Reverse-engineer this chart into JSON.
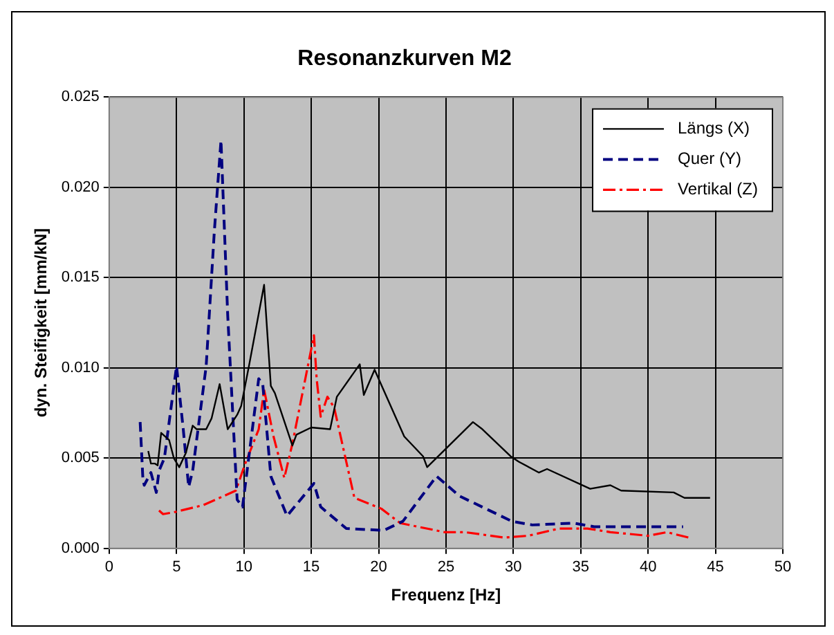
{
  "chart_data": {
    "type": "line",
    "title": "Resonanzkurven M2",
    "xlabel": "Frequenz [Hz]",
    "ylabel": "dyn. Steifigkeit [mm/kN]",
    "xlim": [
      0,
      50
    ],
    "xticks": [
      0,
      5,
      10,
      15,
      20,
      25,
      30,
      35,
      40,
      45,
      50
    ],
    "ylim": [
      0,
      0.025
    ],
    "yticks": [
      {
        "value": 0,
        "label": "0.000"
      },
      {
        "value": 0.005,
        "label": "0.005"
      },
      {
        "value": 0.01,
        "label": "0.010"
      },
      {
        "value": 0.015,
        "label": "0.015"
      },
      {
        "value": 0.02,
        "label": "0.020"
      },
      {
        "value": 0.025,
        "label": "0.025"
      }
    ],
    "grid": true,
    "legend": "top right",
    "marker": "none",
    "series": [
      {
        "name": "Längs (X)",
        "color": "#000000",
        "line_style": "solid",
        "x": [
          2.9,
          3.1,
          3.4,
          3.6,
          3.86,
          4.45,
          4.8,
          5.2,
          5.7,
          6.2,
          6.5,
          7.2,
          7.6,
          8.2,
          8.8,
          9.5,
          9.8,
          10.4,
          11.5,
          12.0,
          12.3,
          13.6,
          13.9,
          15.0,
          16.4,
          16.9,
          18.6,
          18.9,
          19.7,
          21.9,
          23.3,
          23.6,
          27.0,
          27.7,
          29.8,
          30.4,
          31.9,
          32.5,
          35.7,
          37.2,
          38.0,
          41.9,
          42.7,
          44.6
        ],
        "values": [
          0.0054,
          0.0047,
          0.0047,
          0.0046,
          0.0064,
          0.006,
          0.005,
          0.0045,
          0.0053,
          0.0068,
          0.0066,
          0.0066,
          0.0072,
          0.0091,
          0.0066,
          0.0074,
          0.0079,
          0.0102,
          0.0146,
          0.009,
          0.0086,
          0.0057,
          0.0063,
          0.0067,
          0.0066,
          0.0084,
          0.0102,
          0.0085,
          0.0099,
          0.0062,
          0.0051,
          0.0045,
          0.007,
          0.0066,
          0.0051,
          0.0048,
          0.0042,
          0.0044,
          0.0033,
          0.0035,
          0.0032,
          0.0031,
          0.0028,
          0.0028
        ]
      },
      {
        "name": "Quer (Y)",
        "color": "#000080",
        "line_style": "dashed",
        "x": [
          2.3,
          2.5,
          2.6,
          3.1,
          3.5,
          3.7,
          4.1,
          5.0,
          5.5,
          5.9,
          6.2,
          7.2,
          7.8,
          8.3,
          8.8,
          9.5,
          9.9,
          11.1,
          11.4,
          12.0,
          13.2,
          15.2,
          15.7,
          17.6,
          20.4,
          21.8,
          24.3,
          26.0,
          29.9,
          31.4,
          34.5,
          36.0,
          39.8,
          42.6
        ],
        "values": [
          0.007,
          0.0039,
          0.0035,
          0.0042,
          0.0031,
          0.0043,
          0.005,
          0.0101,
          0.0066,
          0.0034,
          0.0043,
          0.0101,
          0.0175,
          0.0226,
          0.0129,
          0.0027,
          0.0023,
          0.0094,
          0.0091,
          0.004,
          0.0018,
          0.0036,
          0.0023,
          0.0011,
          0.001,
          0.0015,
          0.004,
          0.0029,
          0.0015,
          0.0013,
          0.0014,
          0.0012,
          0.0012,
          0.0012
        ]
      },
      {
        "name": "Vertikal (Z)",
        "color": "#ff0000",
        "line_style": "dashdot",
        "x": [
          3.7,
          4.0,
          4.8,
          7.0,
          9.4,
          10.1,
          11.1,
          11.5,
          12.2,
          13.0,
          13.6,
          15.2,
          15.4,
          15.7,
          16.2,
          16.7,
          18.2,
          20.2,
          21.6,
          24.9,
          26.4,
          29.3,
          31.1,
          33.4,
          35.5,
          37.2,
          40.0,
          41.4,
          43.0
        ],
        "values": [
          0.0021,
          0.0019,
          0.002,
          0.0024,
          0.0032,
          0.0047,
          0.0066,
          0.0088,
          0.0062,
          0.0039,
          0.0058,
          0.0118,
          0.0094,
          0.0073,
          0.0084,
          0.0078,
          0.0028,
          0.0022,
          0.0014,
          0.0009,
          0.0009,
          0.0006,
          0.0007,
          0.0011,
          0.0011,
          0.0009,
          0.0007,
          0.0009,
          0.0006
        ]
      }
    ]
  }
}
